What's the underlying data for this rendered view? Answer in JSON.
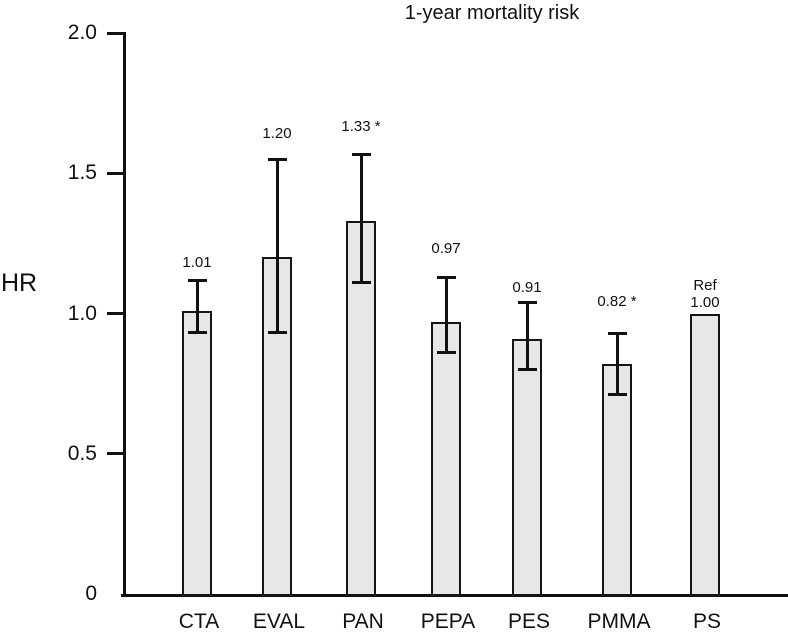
{
  "chart_data": {
    "type": "bar",
    "title": "1-year mortality risk",
    "ylabel": "HR",
    "ylim": [
      0,
      2.0
    ],
    "grid": false,
    "legend": null,
    "bar_fill_color": "#e7e7e7",
    "line_color": "#111111",
    "yticks": [
      {
        "value": 2.0,
        "label": "2.0",
        "tick_mark": true
      },
      {
        "value": 1.5,
        "label": "1.5",
        "tick_mark": true
      },
      {
        "value": 1.0,
        "label": "1.0",
        "tick_mark": true
      },
      {
        "value": 0.5,
        "label": "0.5",
        "tick_mark": true
      },
      {
        "value": 0.0,
        "label": "0",
        "tick_mark": false
      }
    ],
    "categories": [
      "CTA",
      "EVAL",
      "PAN",
      "PEPA",
      "PES",
      "PMMA",
      "PS"
    ],
    "values": [
      1.01,
      1.2,
      1.33,
      0.97,
      0.91,
      0.82,
      1.0
    ],
    "bars": [
      {
        "category": "CTA",
        "value": 1.01,
        "label": "1.01",
        "ci_low": 0.93,
        "ci_high": 1.12,
        "reference": false
      },
      {
        "category": "EVAL",
        "value": 1.2,
        "label": "1.20",
        "ci_low": 0.93,
        "ci_high": 1.55,
        "reference": false
      },
      {
        "category": "PAN",
        "value": 1.33,
        "label": "1.33 *",
        "ci_low": 1.11,
        "ci_high": 1.57,
        "reference": false
      },
      {
        "category": "PEPA",
        "value": 0.97,
        "label": "0.97",
        "ci_low": 0.86,
        "ci_high": 1.13,
        "reference": false
      },
      {
        "category": "PES",
        "value": 0.91,
        "label": "0.91",
        "ci_low": 0.8,
        "ci_high": 1.04,
        "reference": false
      },
      {
        "category": "PMMA",
        "value": 0.82,
        "label": "0.82 *",
        "ci_low": 0.71,
        "ci_high": 0.93,
        "reference": false
      },
      {
        "category": "PS",
        "value": 1.0,
        "label": "Ref\n1.00",
        "ci_low": null,
        "ci_high": null,
        "reference": true
      }
    ]
  }
}
